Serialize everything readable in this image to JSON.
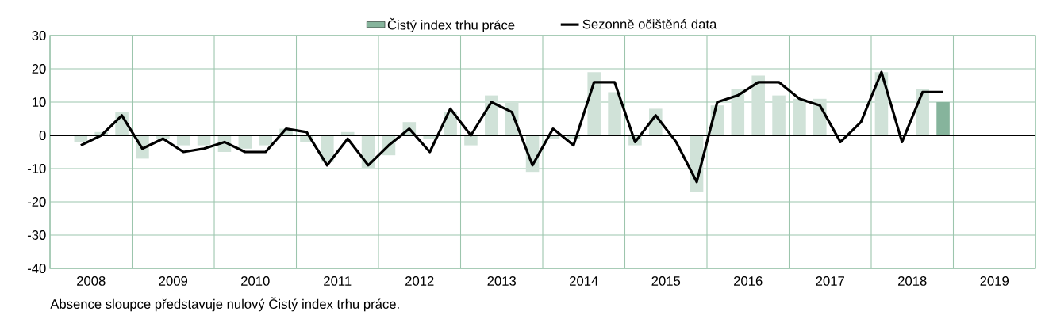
{
  "chart_data": {
    "type": "bar",
    "x": [
      2008.375,
      2008.625,
      2008.875,
      2009.125,
      2009.375,
      2009.625,
      2009.875,
      2010.125,
      2010.375,
      2010.625,
      2010.875,
      2011.125,
      2011.375,
      2011.625,
      2011.875,
      2012.125,
      2012.375,
      2012.625,
      2012.875,
      2013.125,
      2013.375,
      2013.625,
      2013.875,
      2014.125,
      2014.375,
      2014.625,
      2014.875,
      2015.125,
      2015.375,
      2015.625,
      2015.875,
      2016.125,
      2016.375,
      2016.625,
      2016.875,
      2017.125,
      2017.375,
      2017.625,
      2017.875,
      2018.125,
      2018.375,
      2018.625,
      2018.875
    ],
    "series": [
      {
        "name": "Čistý index trhu práce",
        "color": "#86b49c",
        "colors": [
          "#d0e2d8",
          "#d0e2d8",
          "#d0e2d8",
          "#d0e2d8",
          "#d0e2d8",
          "#d0e2d8",
          "#d0e2d8",
          "#d0e2d8",
          "#d0e2d8",
          "#d0e2d8",
          "#d0e2d8",
          "#d0e2d8",
          "#d0e2d8",
          "#d0e2d8",
          "#d0e2d8",
          "#d0e2d8",
          "#d0e2d8",
          "#d0e2d8",
          "#d0e2d8",
          "#d0e2d8",
          "#d0e2d8",
          "#d0e2d8",
          "#d0e2d8",
          "#d0e2d8",
          "#d0e2d8",
          "#d0e2d8",
          "#d0e2d8",
          "#d0e2d8",
          "#d0e2d8",
          "#d0e2d8",
          "#d0e2d8",
          "#d0e2d8",
          "#d0e2d8",
          "#d0e2d8",
          "#d0e2d8",
          "#d0e2d8",
          "#d0e2d8",
          "#d0e2d8",
          "#d0e2d8",
          "#d0e2d8",
          "#d0e2d8",
          "#d0e2d8",
          "#86b49c"
        ],
        "values": [
          -2,
          1,
          7,
          -7,
          -1,
          -3,
          -3,
          -5,
          -4,
          -3,
          2,
          -2,
          -8,
          1,
          -10,
          -6,
          4,
          -1,
          7,
          -3,
          12,
          10,
          -11,
          -1,
          -1,
          19,
          13,
          -3,
          8,
          0,
          -17,
          9,
          14,
          18,
          12,
          11,
          11,
          0,
          0,
          19,
          0,
          14,
          10
        ]
      },
      {
        "name": "Sezonně očištěná data",
        "type": "line",
        "color": "#000000",
        "values": [
          -3,
          0,
          6,
          -4,
          -1,
          -5,
          -4,
          -2,
          -5,
          -5,
          2,
          1,
          -9,
          -1,
          -9,
          -3,
          2,
          -5,
          8,
          0,
          10,
          7,
          -9,
          2,
          -3,
          16,
          16,
          -2,
          6,
          -2,
          -14,
          10,
          12,
          16,
          16,
          11,
          9,
          -2,
          4,
          19,
          -2,
          13,
          13
        ]
      }
    ],
    "xlim": [
      2008,
      2020
    ],
    "xticks": [
      {
        "value": 2008,
        "label": null
      },
      {
        "value": 2008.5,
        "label": "2008"
      },
      {
        "value": 2009,
        "label": null
      },
      {
        "value": 2009.5,
        "label": "2009"
      },
      {
        "value": 2010,
        "label": null
      },
      {
        "value": 2010.5,
        "label": "2010"
      },
      {
        "value": 2011,
        "label": null
      },
      {
        "value": 2011.5,
        "label": "2011"
      },
      {
        "value": 2012,
        "label": null
      },
      {
        "value": 2012.5,
        "label": "2012"
      },
      {
        "value": 2013,
        "label": null
      },
      {
        "value": 2013.5,
        "label": "2013"
      },
      {
        "value": 2014,
        "label": null
      },
      {
        "value": 2014.5,
        "label": "2014"
      },
      {
        "value": 2015,
        "label": null
      },
      {
        "value": 2015.5,
        "label": "2015"
      },
      {
        "value": 2016,
        "label": null
      },
      {
        "value": 2016.5,
        "label": "2016"
      },
      {
        "value": 2017,
        "label": null
      },
      {
        "value": 2017.5,
        "label": "2017"
      },
      {
        "value": 2018,
        "label": null
      },
      {
        "value": 2018.5,
        "label": "2018"
      },
      {
        "value": 2019,
        "label": null
      },
      {
        "value": 2019.5,
        "label": "2019"
      },
      {
        "value": 2020,
        "label": null
      }
    ],
    "ylim": [
      -40,
      30
    ],
    "yticks": [
      -40,
      -30,
      -20,
      -10,
      0,
      10,
      20,
      30
    ],
    "grid": true,
    "legend": "top",
    "ref_lines": [
      {
        "axis": "y",
        "value": 0,
        "color": "#000000"
      }
    ],
    "annotations": [
      "Absence sloupce představuje nulový Čistý index trhu práce."
    ]
  }
}
